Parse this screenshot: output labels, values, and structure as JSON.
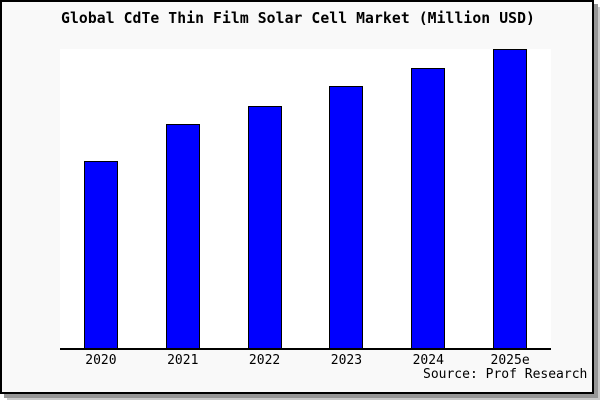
{
  "chart_data": {
    "type": "bar",
    "title": "Global CdTe Thin Film Solar Cell Market (Million USD)",
    "categories": [
      "2020",
      "2021",
      "2022",
      "2023",
      "2024",
      "2025e"
    ],
    "values": [
      0.626,
      0.749,
      0.81,
      0.876,
      0.935,
      1.0
    ],
    "value_scale": "relative to tallest bar (2025e); chart shows no y-axis tick labels",
    "ylim": [
      0,
      1.0
    ],
    "xlabel": "",
    "ylabel": "",
    "grid": false,
    "legend": false,
    "source_note": "Source: Prof Research",
    "colors": {
      "bar_fill": "#0000ff",
      "bar_border": "#000000",
      "plot_background": "#ffffff",
      "figure_background": "#f9f9f9",
      "text": "#000000",
      "axis_line": "#000000",
      "border": "#000000",
      "shadow": "#969696"
    }
  }
}
